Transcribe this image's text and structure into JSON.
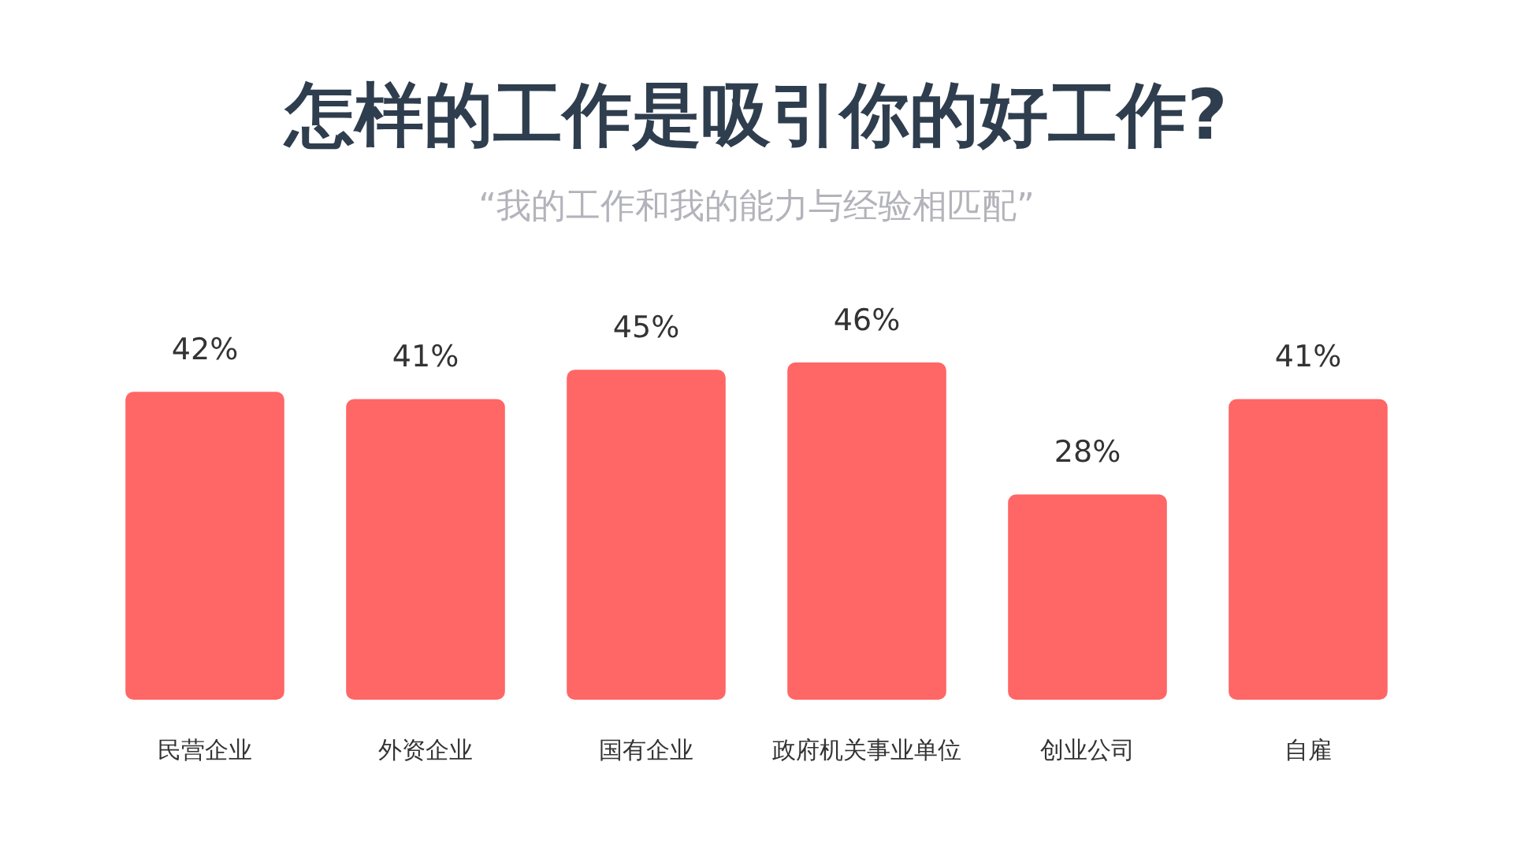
{
  "chart_data": {
    "type": "bar",
    "title": "怎样的工作是吸引你的好工作?",
    "subtitle": "“我的工作和我的能力与经验相匹配”",
    "categories": [
      "民营企业",
      "外资企业",
      "国有企业",
      "政府机关事业单位",
      "创业公司",
      "自雇"
    ],
    "values": [
      42,
      41,
      45,
      46,
      28,
      41
    ],
    "value_labels": [
      "42%",
      "41%",
      "45%",
      "46%",
      "28%",
      "41%"
    ],
    "color": "#ff6666",
    "grid": false,
    "legend": false
  }
}
